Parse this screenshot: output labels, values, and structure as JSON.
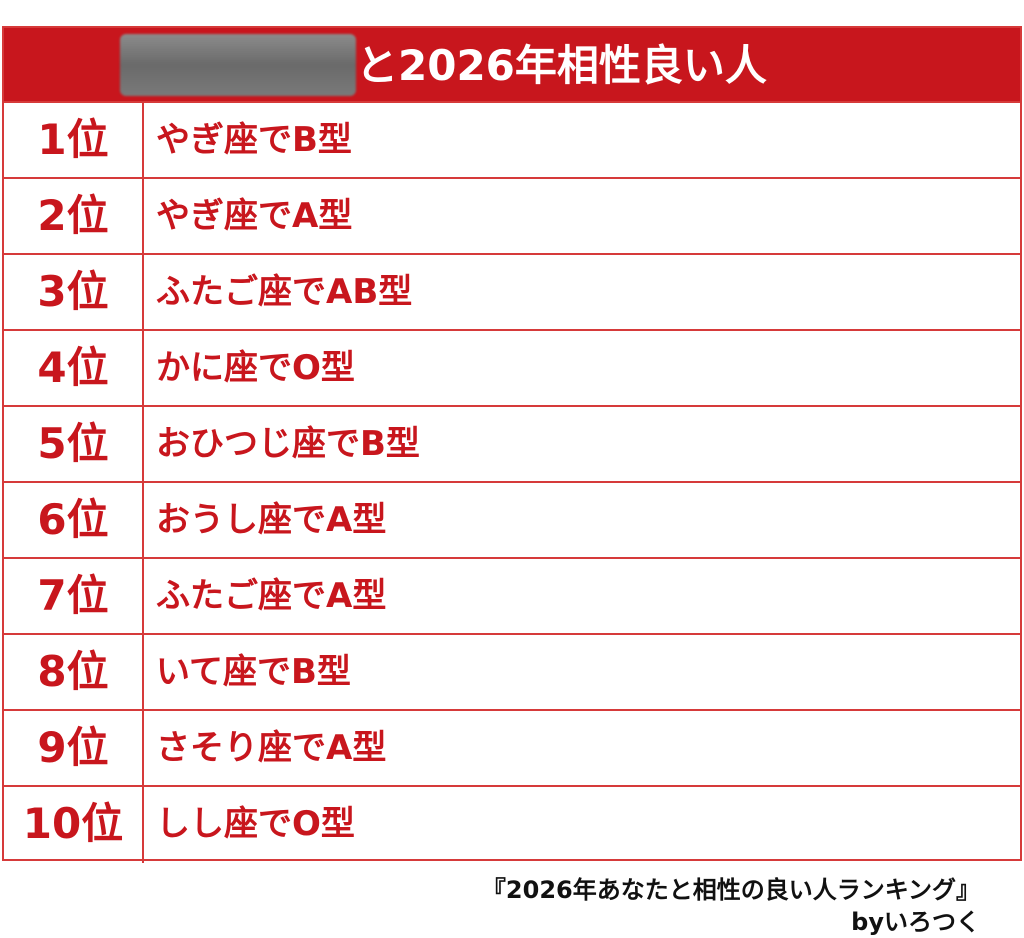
{
  "header": {
    "title_suffix": "と2026年相性良い人"
  },
  "ranking": [
    {
      "rank": "1位",
      "label": "やぎ座でB型"
    },
    {
      "rank": "2位",
      "label": "やぎ座でA型"
    },
    {
      "rank": "3位",
      "label": "ふたご座でAB型"
    },
    {
      "rank": "4位",
      "label": "かに座でO型"
    },
    {
      "rank": "5位",
      "label": "おひつじ座でB型"
    },
    {
      "rank": "6位",
      "label": "おうし座でA型"
    },
    {
      "rank": "7位",
      "label": "ふたご座でA型"
    },
    {
      "rank": "8位",
      "label": "いて座でB型"
    },
    {
      "rank": "9位",
      "label": "さそり座でA型"
    },
    {
      "rank": "10位",
      "label": "しし座でO型"
    }
  ],
  "footer": {
    "source": "『2026年あなたと相性の良い人ランキング』",
    "credit": "byいろつく"
  },
  "colors": {
    "accent": "#c8161d",
    "border": "#d63a3a",
    "header_text": "#ffffff",
    "footer_text": "#111111"
  }
}
